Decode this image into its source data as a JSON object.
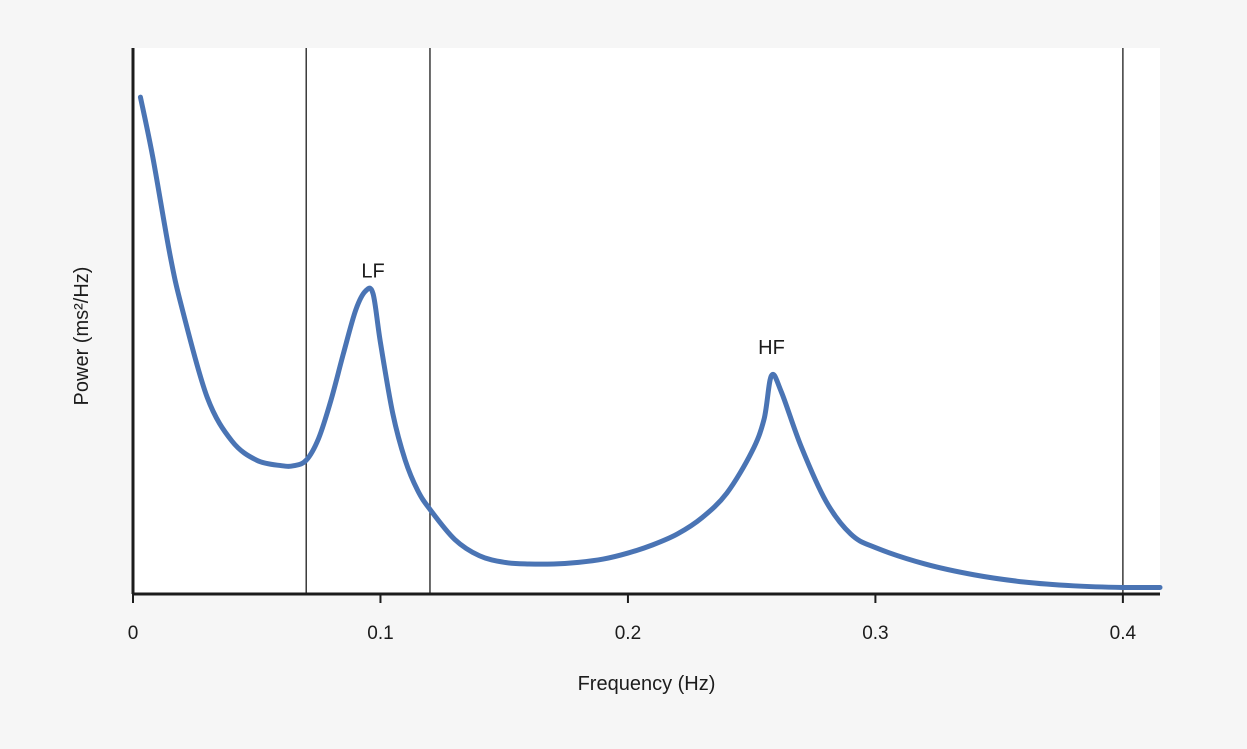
{
  "colors": {
    "background": "#f6f6f6",
    "plot_background": "#ffffff",
    "line": "#4a74b4",
    "axis": "#1c1c1c",
    "band_line": "#3a3a3a"
  },
  "chart_data": {
    "type": "line",
    "title": "",
    "xlabel": "Frequency (Hz)",
    "ylabel": "Power (ms²/Hz)",
    "xlim": [
      0,
      0.415
    ],
    "ylim": [
      0,
      1
    ],
    "x_ticks": [
      0,
      0.1,
      0.2,
      0.3,
      0.4
    ],
    "x_tick_labels": [
      "0",
      "0.1",
      "0.2",
      "0.3",
      "0.4"
    ],
    "y_ticks_shown": false,
    "grid": false,
    "band_boundaries": [
      0.07,
      0.12,
      0.4
    ],
    "annotations": [
      {
        "text": "LF",
        "x": 0.097,
        "y": 0.58
      },
      {
        "text": "HF",
        "x": 0.258,
        "y": 0.44
      }
    ],
    "series": [
      {
        "x": [
          0.003,
          0.008,
          0.015,
          0.02,
          0.03,
          0.04,
          0.05,
          0.06,
          0.065,
          0.07,
          0.075,
          0.08,
          0.085,
          0.09,
          0.094,
          0.097,
          0.1,
          0.105,
          0.11,
          0.115,
          0.12,
          0.13,
          0.14,
          0.15,
          0.16,
          0.17,
          0.18,
          0.19,
          0.2,
          0.21,
          0.22,
          0.23,
          0.24,
          0.25,
          0.255,
          0.258,
          0.262,
          0.27,
          0.28,
          0.29,
          0.3,
          0.32,
          0.34,
          0.36,
          0.38,
          0.4,
          0.415
        ],
        "y": [
          0.91,
          0.8,
          0.62,
          0.52,
          0.36,
          0.28,
          0.245,
          0.235,
          0.235,
          0.245,
          0.285,
          0.355,
          0.44,
          0.52,
          0.555,
          0.55,
          0.46,
          0.33,
          0.245,
          0.19,
          0.155,
          0.1,
          0.07,
          0.058,
          0.055,
          0.055,
          0.058,
          0.064,
          0.075,
          0.09,
          0.11,
          0.14,
          0.185,
          0.26,
          0.32,
          0.4,
          0.37,
          0.27,
          0.17,
          0.11,
          0.085,
          0.055,
          0.035,
          0.022,
          0.015,
          0.012,
          0.012
        ]
      }
    ]
  }
}
